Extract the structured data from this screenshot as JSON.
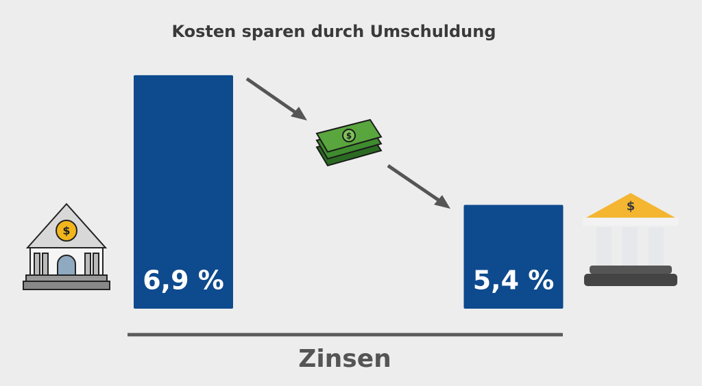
{
  "chart_data": {
    "type": "bar",
    "title": "Kosten sparen durch Umschuldung",
    "x_label": "Zinsen",
    "categories": [
      null,
      null
    ],
    "values": [
      6.9,
      5.4
    ],
    "value_labels": [
      "6,9 %",
      "5,4 %"
    ],
    "color": "#0e4a8e",
    "ylim": [
      4.2,
      7.2
    ]
  }
}
